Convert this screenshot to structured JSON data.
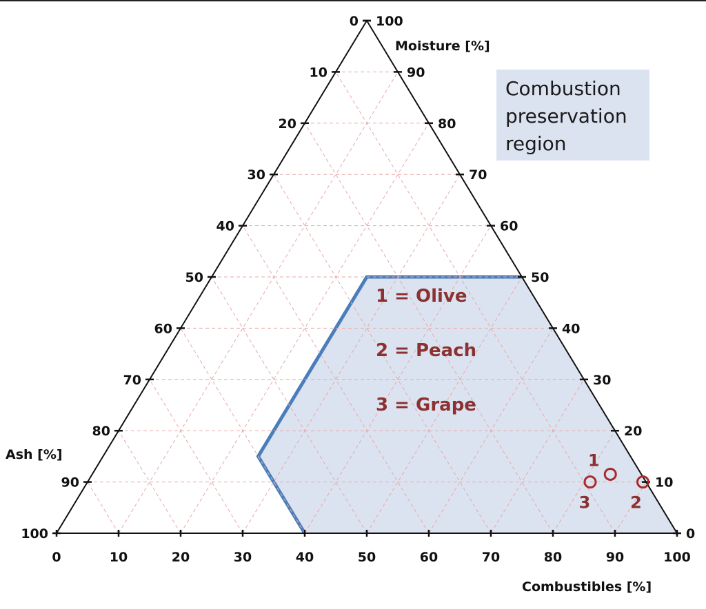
{
  "chart_data": {
    "type": "ternary",
    "axes": {
      "bottom": {
        "label": "Combustibles [%]",
        "ticks": [
          0,
          10,
          20,
          30,
          40,
          50,
          60,
          70,
          80,
          90,
          100
        ]
      },
      "right": {
        "label": "Moisture [%]",
        "ticks": [
          0,
          10,
          20,
          30,
          40,
          50,
          60,
          70,
          80,
          90,
          100
        ]
      },
      "left": {
        "label": "Ash [%]",
        "ticks": [
          0,
          10,
          20,
          30,
          40,
          50,
          60,
          70,
          80,
          90,
          100
        ]
      }
    },
    "grid": true,
    "region": {
      "label": "Combustion preservation region",
      "fill": "#dce3f0",
      "stroke": "#4a7ebb",
      "vertices": [
        {
          "combustibles": 25,
          "moisture": 50,
          "ash": 25
        },
        {
          "combustibles": 50,
          "moisture": 50,
          "ash": 0
        },
        {
          "combustibles": 100,
          "moisture": 0,
          "ash": 0
        },
        {
          "combustibles": 40,
          "moisture": 0,
          "ash": 60
        },
        {
          "combustibles": 25,
          "moisture": 15,
          "ash": 60
        }
      ]
    },
    "points": [
      {
        "label": "1",
        "name": "Olive",
        "combustibles": 83.5,
        "moisture": 11.5,
        "ash": 5
      },
      {
        "label": "2",
        "name": "Peach",
        "combustibles": 89.5,
        "moisture": 10,
        "ash": 0.5
      },
      {
        "label": "3",
        "name": "Grape",
        "combustibles": 81,
        "moisture": 10,
        "ash": 9
      }
    ],
    "legend": [
      {
        "text": "1 = Olive"
      },
      {
        "text": "2 = Peach"
      },
      {
        "text": "3 = Grape"
      }
    ],
    "colors": {
      "point": "#a82a2a",
      "grid": "#e8a8a8",
      "region_fill": "#dce3f0",
      "region_stroke": "#4a7ebb",
      "label_box": "#dce3f0"
    }
  }
}
